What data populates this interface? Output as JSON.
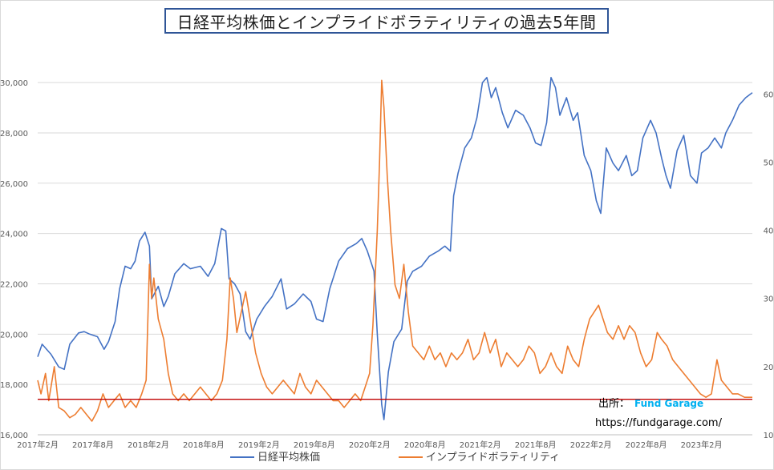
{
  "chart_data": {
    "type": "line",
    "title": "日経平均株価とインプライドボラティリティの過去5年間",
    "x_tick_labels": [
      "2017年2月",
      "2017年8月",
      "2018年2月",
      "2018年8月",
      "2019年2月",
      "2019年8月",
      "2020年2月",
      "2020年8月",
      "2021年2月",
      "2021年8月",
      "2022年2月",
      "2022年8月",
      "2023年2月"
    ],
    "x_range": [
      2017.08,
      2023.54
    ],
    "y_left": {
      "ticks": [
        "16,000",
        "18,000",
        "20,000",
        "22,000",
        "24,000",
        "26,000",
        "28,000",
        "30,000"
      ],
      "range": [
        16000,
        31500
      ]
    },
    "y_right": {
      "ticks": [
        "10",
        "20",
        "30",
        "40",
        "50",
        "60"
      ],
      "range": [
        10,
        67.2
      ]
    },
    "reference_line": {
      "axis": "right",
      "value": 15.2,
      "color": "#c00000"
    },
    "grid": "horizontal",
    "legend_position": "bottom",
    "series": [
      {
        "name": "日経平均株価",
        "axis": "left",
        "color": "#4472c4",
        "points": [
          [
            2017.08,
            19100
          ],
          [
            2017.12,
            19600
          ],
          [
            2017.2,
            19200
          ],
          [
            2017.27,
            18700
          ],
          [
            2017.32,
            18600
          ],
          [
            2017.37,
            19600
          ],
          [
            2017.45,
            20050
          ],
          [
            2017.5,
            20100
          ],
          [
            2017.55,
            20000
          ],
          [
            2017.62,
            19900
          ],
          [
            2017.68,
            19400
          ],
          [
            2017.72,
            19700
          ],
          [
            2017.78,
            20500
          ],
          [
            2017.82,
            21800
          ],
          [
            2017.87,
            22700
          ],
          [
            2017.92,
            22600
          ],
          [
            2017.96,
            22900
          ],
          [
            2018.0,
            23700
          ],
          [
            2018.05,
            24050
          ],
          [
            2018.09,
            23500
          ],
          [
            2018.11,
            21400
          ],
          [
            2018.17,
            21900
          ],
          [
            2018.22,
            21100
          ],
          [
            2018.26,
            21500
          ],
          [
            2018.32,
            22400
          ],
          [
            2018.4,
            22800
          ],
          [
            2018.46,
            22600
          ],
          [
            2018.55,
            22700
          ],
          [
            2018.62,
            22300
          ],
          [
            2018.68,
            22800
          ],
          [
            2018.74,
            24200
          ],
          [
            2018.78,
            24100
          ],
          [
            2018.81,
            22200
          ],
          [
            2018.86,
            22000
          ],
          [
            2018.91,
            21600
          ],
          [
            2018.96,
            20100
          ],
          [
            2019.0,
            19800
          ],
          [
            2019.06,
            20600
          ],
          [
            2019.13,
            21100
          ],
          [
            2019.2,
            21500
          ],
          [
            2019.28,
            22200
          ],
          [
            2019.33,
            21000
          ],
          [
            2019.4,
            21200
          ],
          [
            2019.48,
            21600
          ],
          [
            2019.55,
            21300
          ],
          [
            2019.6,
            20600
          ],
          [
            2019.66,
            20500
          ],
          [
            2019.72,
            21800
          ],
          [
            2019.8,
            22900
          ],
          [
            2019.88,
            23400
          ],
          [
            2019.96,
            23600
          ],
          [
            2020.01,
            23800
          ],
          [
            2020.06,
            23300
          ],
          [
            2020.12,
            22500
          ],
          [
            2020.15,
            20000
          ],
          [
            2020.19,
            17200
          ],
          [
            2020.21,
            16600
          ],
          [
            2020.25,
            18500
          ],
          [
            2020.3,
            19700
          ],
          [
            2020.37,
            20200
          ],
          [
            2020.42,
            22100
          ],
          [
            2020.47,
            22500
          ],
          [
            2020.55,
            22700
          ],
          [
            2020.62,
            23100
          ],
          [
            2020.7,
            23300
          ],
          [
            2020.76,
            23500
          ],
          [
            2020.81,
            23300
          ],
          [
            2020.84,
            25500
          ],
          [
            2020.88,
            26400
          ],
          [
            2020.94,
            27400
          ],
          [
            2021.0,
            27800
          ],
          [
            2021.05,
            28600
          ],
          [
            2021.1,
            30000
          ],
          [
            2021.14,
            30200
          ],
          [
            2021.18,
            29400
          ],
          [
            2021.22,
            29800
          ],
          [
            2021.28,
            28800
          ],
          [
            2021.33,
            28200
          ],
          [
            2021.4,
            28900
          ],
          [
            2021.47,
            28700
          ],
          [
            2021.53,
            28200
          ],
          [
            2021.58,
            27600
          ],
          [
            2021.63,
            27500
          ],
          [
            2021.68,
            28400
          ],
          [
            2021.72,
            30200
          ],
          [
            2021.76,
            29800
          ],
          [
            2021.8,
            28700
          ],
          [
            2021.86,
            29400
          ],
          [
            2021.92,
            28500
          ],
          [
            2021.96,
            28800
          ],
          [
            2022.02,
            27100
          ],
          [
            2022.08,
            26500
          ],
          [
            2022.13,
            25300
          ],
          [
            2022.17,
            24800
          ],
          [
            2022.22,
            27400
          ],
          [
            2022.28,
            26800
          ],
          [
            2022.33,
            26500
          ],
          [
            2022.4,
            27100
          ],
          [
            2022.45,
            26300
          ],
          [
            2022.5,
            26500
          ],
          [
            2022.55,
            27800
          ],
          [
            2022.62,
            28500
          ],
          [
            2022.67,
            28000
          ],
          [
            2022.72,
            27000
          ],
          [
            2022.76,
            26300
          ],
          [
            2022.8,
            25800
          ],
          [
            2022.86,
            27300
          ],
          [
            2022.92,
            27900
          ],
          [
            2022.98,
            26300
          ],
          [
            2023.04,
            26000
          ],
          [
            2023.08,
            27200
          ],
          [
            2023.14,
            27400
          ],
          [
            2023.2,
            27800
          ],
          [
            2023.26,
            27400
          ],
          [
            2023.3,
            28000
          ],
          [
            2023.36,
            28500
          ],
          [
            2023.42,
            29100
          ],
          [
            2023.48,
            29400
          ],
          [
            2023.54,
            29600
          ]
        ]
      },
      {
        "name": "インプライドボラティリティ",
        "axis": "right",
        "color": "#ed7d31",
        "points": [
          [
            2017.08,
            18
          ],
          [
            2017.11,
            16
          ],
          [
            2017.15,
            19
          ],
          [
            2017.18,
            15
          ],
          [
            2017.23,
            20
          ],
          [
            2017.27,
            14
          ],
          [
            2017.32,
            13.5
          ],
          [
            2017.37,
            12.5
          ],
          [
            2017.42,
            13
          ],
          [
            2017.47,
            14
          ],
          [
            2017.52,
            13
          ],
          [
            2017.57,
            12
          ],
          [
            2017.62,
            13.5
          ],
          [
            2017.67,
            16
          ],
          [
            2017.72,
            14
          ],
          [
            2017.77,
            15
          ],
          [
            2017.82,
            16
          ],
          [
            2017.87,
            14
          ],
          [
            2017.92,
            15
          ],
          [
            2017.97,
            14
          ],
          [
            2018.02,
            16
          ],
          [
            2018.06,
            18
          ],
          [
            2018.09,
            35
          ],
          [
            2018.11,
            30
          ],
          [
            2018.13,
            33
          ],
          [
            2018.17,
            27
          ],
          [
            2018.22,
            24
          ],
          [
            2018.26,
            19
          ],
          [
            2018.3,
            16
          ],
          [
            2018.35,
            15
          ],
          [
            2018.4,
            16
          ],
          [
            2018.45,
            15
          ],
          [
            2018.5,
            16
          ],
          [
            2018.55,
            17
          ],
          [
            2018.6,
            16
          ],
          [
            2018.65,
            15
          ],
          [
            2018.7,
            16
          ],
          [
            2018.75,
            18
          ],
          [
            2018.79,
            24
          ],
          [
            2018.82,
            33
          ],
          [
            2018.85,
            30
          ],
          [
            2018.88,
            25
          ],
          [
            2018.92,
            28
          ],
          [
            2018.96,
            31
          ],
          [
            2019.0,
            27
          ],
          [
            2019.05,
            22
          ],
          [
            2019.1,
            19
          ],
          [
            2019.15,
            17
          ],
          [
            2019.2,
            16
          ],
          [
            2019.25,
            17
          ],
          [
            2019.3,
            18
          ],
          [
            2019.35,
            17
          ],
          [
            2019.4,
            16
          ],
          [
            2019.45,
            19
          ],
          [
            2019.5,
            17
          ],
          [
            2019.55,
            16
          ],
          [
            2019.6,
            18
          ],
          [
            2019.65,
            17
          ],
          [
            2019.7,
            16
          ],
          [
            2019.75,
            15
          ],
          [
            2019.8,
            15
          ],
          [
            2019.85,
            14
          ],
          [
            2019.9,
            15
          ],
          [
            2019.95,
            16
          ],
          [
            2020.0,
            15
          ],
          [
            2020.04,
            17
          ],
          [
            2020.08,
            19
          ],
          [
            2020.11,
            26
          ],
          [
            2020.13,
            33
          ],
          [
            2020.15,
            40
          ],
          [
            2020.17,
            50
          ],
          [
            2020.19,
            62
          ],
          [
            2020.21,
            58
          ],
          [
            2020.24,
            48
          ],
          [
            2020.27,
            40
          ],
          [
            2020.31,
            32
          ],
          [
            2020.35,
            30
          ],
          [
            2020.39,
            35
          ],
          [
            2020.43,
            28
          ],
          [
            2020.47,
            23
          ],
          [
            2020.52,
            22
          ],
          [
            2020.57,
            21
          ],
          [
            2020.62,
            23
          ],
          [
            2020.67,
            21
          ],
          [
            2020.72,
            22
          ],
          [
            2020.77,
            20
          ],
          [
            2020.82,
            22
          ],
          [
            2020.87,
            21
          ],
          [
            2020.92,
            22
          ],
          [
            2020.97,
            24
          ],
          [
            2021.02,
            21
          ],
          [
            2021.07,
            22
          ],
          [
            2021.12,
            25
          ],
          [
            2021.17,
            22
          ],
          [
            2021.22,
            24
          ],
          [
            2021.27,
            20
          ],
          [
            2021.32,
            22
          ],
          [
            2021.37,
            21
          ],
          [
            2021.42,
            20
          ],
          [
            2021.47,
            21
          ],
          [
            2021.52,
            23
          ],
          [
            2021.57,
            22
          ],
          [
            2021.62,
            19
          ],
          [
            2021.67,
            20
          ],
          [
            2021.72,
            22
          ],
          [
            2021.77,
            20
          ],
          [
            2021.82,
            19
          ],
          [
            2021.87,
            23
          ],
          [
            2021.92,
            21
          ],
          [
            2021.97,
            20
          ],
          [
            2022.02,
            24
          ],
          [
            2022.07,
            27
          ],
          [
            2022.11,
            28
          ],
          [
            2022.15,
            29
          ],
          [
            2022.19,
            27
          ],
          [
            2022.23,
            25
          ],
          [
            2022.28,
            24
          ],
          [
            2022.33,
            26
          ],
          [
            2022.38,
            24
          ],
          [
            2022.43,
            26
          ],
          [
            2022.48,
            25
          ],
          [
            2022.53,
            22
          ],
          [
            2022.58,
            20
          ],
          [
            2022.63,
            21
          ],
          [
            2022.68,
            25
          ],
          [
            2022.72,
            24
          ],
          [
            2022.77,
            23
          ],
          [
            2022.82,
            21
          ],
          [
            2022.87,
            20
          ],
          [
            2022.92,
            19
          ],
          [
            2022.97,
            18
          ],
          [
            2023.02,
            17
          ],
          [
            2023.07,
            16
          ],
          [
            2023.12,
            15.5
          ],
          [
            2023.17,
            16
          ],
          [
            2023.22,
            21
          ],
          [
            2023.26,
            18
          ],
          [
            2023.31,
            17
          ],
          [
            2023.36,
            16
          ],
          [
            2023.41,
            16
          ],
          [
            2023.47,
            15.5
          ],
          [
            2023.54,
            15.5
          ]
        ]
      }
    ],
    "annotations": {
      "source_label": "出所：",
      "source_name": "Fund Garage",
      "source_url": "https://fundgarage.com/"
    }
  }
}
